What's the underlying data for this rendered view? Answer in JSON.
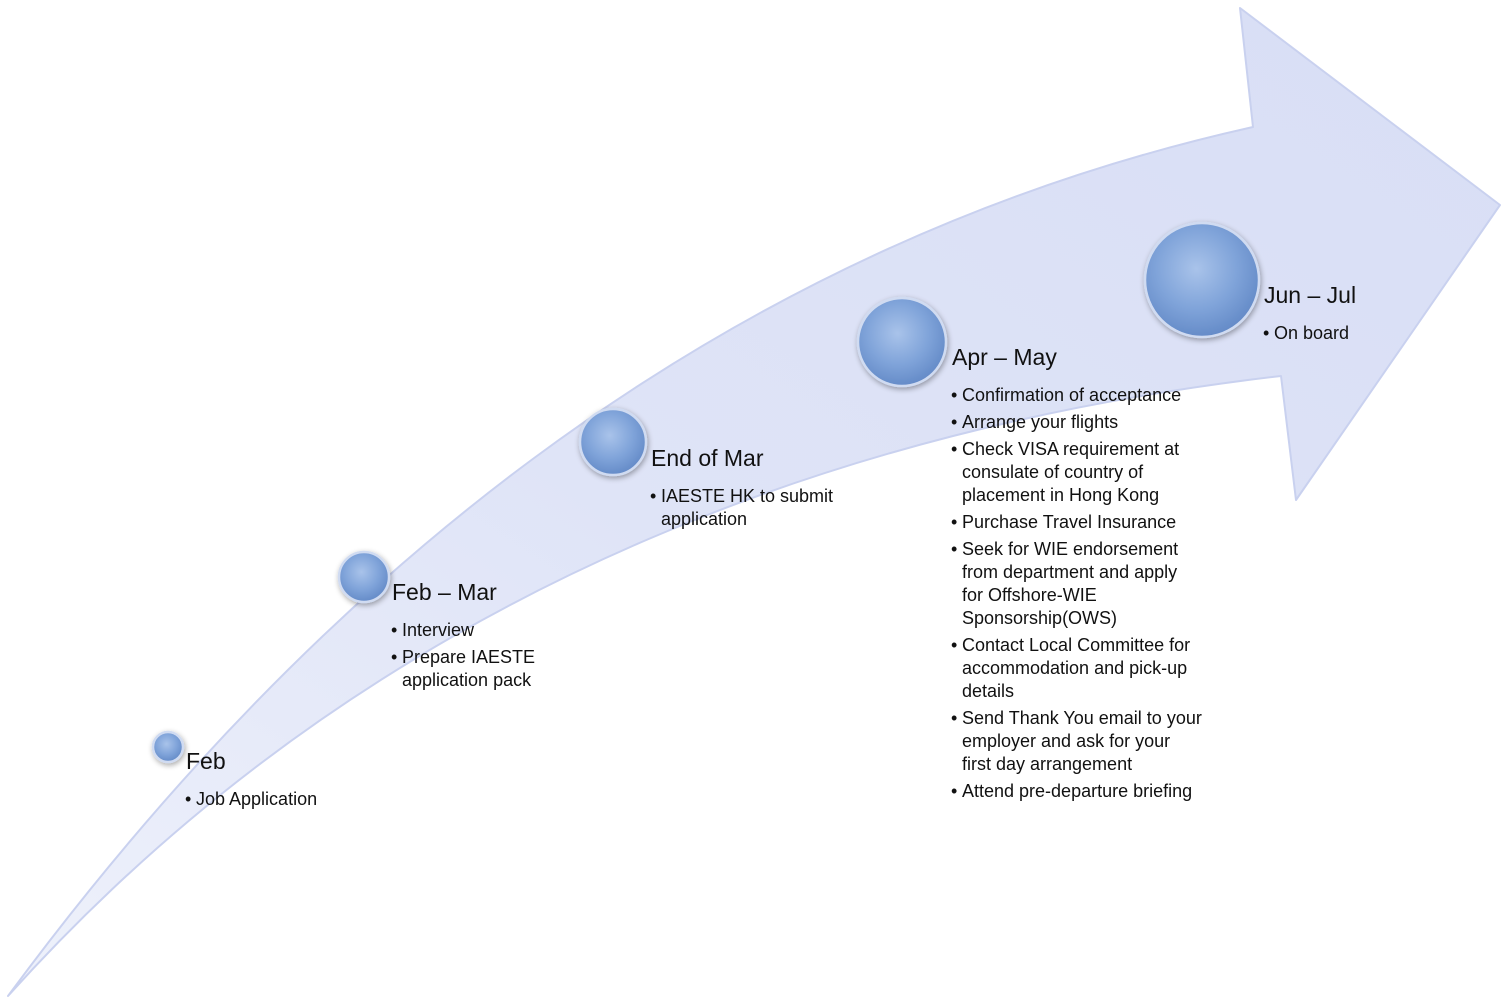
{
  "colors": {
    "arrow_fill": "#dfe4f7",
    "arrow_edge": "#c9d1ef",
    "node_fill": "#7fa3d9",
    "node_edge": "#d0dbf1"
  },
  "stages": [
    {
      "title": "Feb",
      "items": [
        "Job Application"
      ]
    },
    {
      "title": "Feb – Mar",
      "items": [
        "Interview",
        "Prepare IAESTE application pack"
      ]
    },
    {
      "title": "End of Mar",
      "items": [
        "IAESTE HK to submit application"
      ]
    },
    {
      "title": "Apr – May",
      "items": [
        "Confirmation of acceptance",
        "Arrange your flights",
        "Check VISA requirement at consulate of country of placement in Hong Kong",
        "Purchase Travel Insurance",
        "Seek for WIE endorsement from department and apply for Offshore-WIE Sponsorship(OWS)",
        "Contact Local Committee for accommodation and pick-up details",
        "Send Thank You email to your employer and ask for your first day arrangement",
        "Attend pre-departure briefing"
      ]
    },
    {
      "title": "Jun – Jul",
      "items": [
        "On board"
      ]
    }
  ]
}
